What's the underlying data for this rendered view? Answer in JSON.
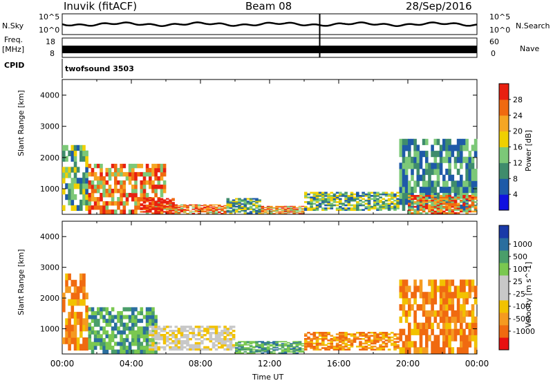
{
  "header": {
    "station": "Inuvik (fitACF)",
    "beam": "Beam 08",
    "date": "28/Sep/2016"
  },
  "left_labels": {
    "nsky": "N.Sky",
    "freq": "Freq.",
    "mhz": "[MHz]",
    "cpid": "CPID"
  },
  "right_labels": {
    "nsearch": "N.Search",
    "nave": "Nave"
  },
  "status_panels": {
    "nsky_ticks": [
      "10^5",
      "10^0"
    ],
    "nsearch_ticks": [
      "10^5",
      "10^0"
    ],
    "freq_ticks": [
      "18",
      "8"
    ],
    "nave_ticks": [
      "60",
      "0"
    ],
    "cpid_label": "twofsound 3503"
  },
  "chart_data": [
    {
      "type": "heatmap",
      "title": "",
      "xlabel": "",
      "ylabel": "Slant Range [km]",
      "ylim": [
        180,
        4500
      ],
      "y_ticks": [
        "4000",
        "3000",
        "2000",
        "1000"
      ],
      "colorbar": {
        "label": "Power [dB]",
        "range": [
          0,
          32
        ],
        "ticks": [
          "28",
          "24",
          "20",
          "16",
          "12",
          "8",
          "4"
        ],
        "colors": [
          "#1010e0",
          "#1e5aa8",
          "#3f8c6c",
          "#7cc878",
          "#f0d000",
          "#f5a623",
          "#f06a10",
          "#e82010"
        ]
      },
      "regions": [
        {
          "t0": 0.0,
          "t1": 1.5,
          "r0": 300,
          "r1": 2400,
          "level": "mid"
        },
        {
          "t0": 1.5,
          "t1": 6.0,
          "r0": 200,
          "r1": 1800,
          "level": "high"
        },
        {
          "t0": 4.5,
          "t1": 6.5,
          "r0": 200,
          "r1": 700,
          "level": "max"
        },
        {
          "t0": 6.0,
          "t1": 9.5,
          "r0": 200,
          "r1": 500,
          "level": "high"
        },
        {
          "t0": 9.5,
          "t1": 11.5,
          "r0": 200,
          "r1": 700,
          "level": "mid"
        },
        {
          "t0": 11.5,
          "t1": 14.0,
          "r0": 200,
          "r1": 450,
          "level": "high"
        },
        {
          "t0": 14.0,
          "t1": 19.5,
          "r0": 300,
          "r1": 900,
          "level": "mid"
        },
        {
          "t0": 19.5,
          "t1": 24.0,
          "r0": 300,
          "r1": 2600,
          "level": "low"
        },
        {
          "t0": 20.0,
          "t1": 24.0,
          "r0": 200,
          "r1": 800,
          "level": "high"
        }
      ]
    },
    {
      "type": "heatmap",
      "title": "",
      "xlabel": "Time UT",
      "ylabel": "Slant Range [km]",
      "ylim": [
        180,
        4500
      ],
      "y_ticks": [
        "4000",
        "3000",
        "2000",
        "1000"
      ],
      "x_ticks": [
        "00:00",
        "04:00",
        "08:00",
        "12:00",
        "16:00",
        "20:00",
        "00:00"
      ],
      "colorbar": {
        "label": "Velocity [m s^-1]",
        "range": [
          -1000,
          1000
        ],
        "ticks": [
          "1000",
          "500",
          "100",
          "25",
          "-25",
          "-100",
          "-500",
          "-1000"
        ],
        "colors": [
          "#e81010",
          "#f06a10",
          "#f59a20",
          "#f2c200",
          "#c8c8c8",
          "#c8c8c8",
          "#7ac850",
          "#4a9e6a",
          "#2a6e9e",
          "#1a3aa8"
        ]
      },
      "regions": [
        {
          "t0": 0.0,
          "t1": 1.5,
          "r0": 300,
          "r1": 2800,
          "level": "neg"
        },
        {
          "t0": 1.5,
          "t1": 5.5,
          "r0": 200,
          "r1": 1700,
          "level": "pos"
        },
        {
          "t0": 5.0,
          "t1": 10.0,
          "r0": 300,
          "r1": 1100,
          "level": "zero"
        },
        {
          "t0": 10.0,
          "t1": 14.0,
          "r0": 200,
          "r1": 600,
          "level": "pos"
        },
        {
          "t0": 14.0,
          "t1": 19.5,
          "r0": 300,
          "r1": 900,
          "level": "neg"
        },
        {
          "t0": 19.5,
          "t1": 24.0,
          "r0": 200,
          "r1": 2600,
          "level": "neg"
        }
      ]
    }
  ]
}
